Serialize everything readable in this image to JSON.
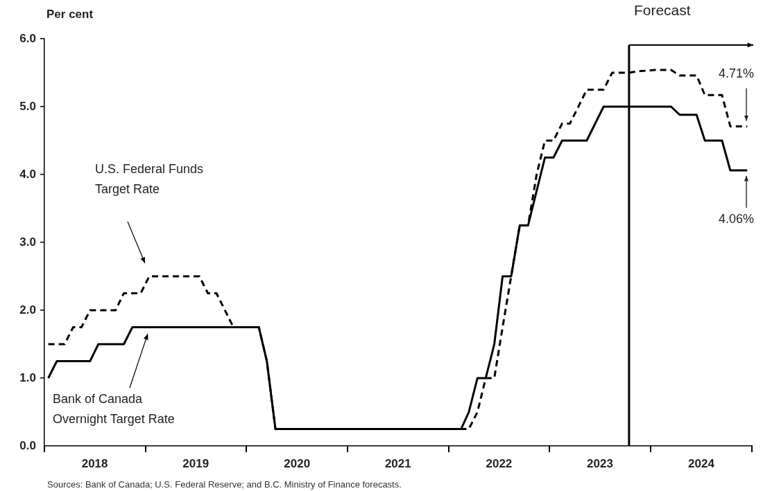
{
  "chart_data": {
    "type": "line",
    "ylabel": "Per cent",
    "xlim": [
      "2018-01-01",
      "2025-01-01"
    ],
    "xticks": [
      {
        "value": "2018-01-01",
        "label": null
      },
      {
        "value": "2018-07-02",
        "label": "2018"
      },
      {
        "value": "2019-01-01",
        "label": null
      },
      {
        "value": "2019-07-02",
        "label": "2019"
      },
      {
        "value": "2020-01-01",
        "label": null
      },
      {
        "value": "2020-07-02",
        "label": "2020"
      },
      {
        "value": "2021-01-01",
        "label": null
      },
      {
        "value": "2021-07-02",
        "label": "2021"
      },
      {
        "value": "2022-01-01",
        "label": null
      },
      {
        "value": "2022-07-02",
        "label": "2022"
      },
      {
        "value": "2023-01-01",
        "label": null
      },
      {
        "value": "2023-07-02",
        "label": "2023"
      },
      {
        "value": "2024-01-01",
        "label": null
      },
      {
        "value": "2024-07-02",
        "label": "2024"
      },
      {
        "value": "2025-01-01",
        "label": null
      }
    ],
    "ylim": [
      0,
      6
    ],
    "yticks": [
      {
        "value": 0,
        "label": "0.0"
      },
      {
        "value": 1,
        "label": "1.0"
      },
      {
        "value": 2,
        "label": "2.0"
      },
      {
        "value": 3,
        "label": "3.0"
      },
      {
        "value": 4,
        "label": "4.0"
      },
      {
        "value": 5,
        "label": "5.0"
      },
      {
        "value": 6,
        "label": "6.0"
      }
    ],
    "grid": false,
    "series": [
      {
        "color": "#000000",
        "line_style": "solid",
        "x": [
          "2018-01-15",
          "2018-02-15",
          "2018-06-15",
          "2018-07-15",
          "2018-10-15",
          "2018-11-15",
          "2020-02-15",
          "2020-03-15",
          "2020-04-15",
          "2022-02-15",
          "2022-03-15",
          "2022-04-15",
          "2022-05-15",
          "2022-06-15",
          "2022-07-15",
          "2022-08-15",
          "2022-09-15",
          "2022-10-15",
          "2022-12-15",
          "2023-01-15",
          "2023-02-15",
          "2023-05-15",
          "2023-07-15",
          "2024-03-15",
          "2024-04-15",
          "2024-06-15",
          "2024-07-15",
          "2024-09-15",
          "2024-10-15",
          "2024-12-15"
        ],
        "values": [
          1.0,
          1.25,
          1.25,
          1.5,
          1.5,
          1.75,
          1.75,
          1.25,
          0.25,
          0.25,
          0.5,
          1.0,
          1.0,
          1.5,
          2.5,
          2.5,
          3.25,
          3.25,
          4.25,
          4.25,
          4.5,
          4.5,
          5.0,
          5.0,
          4.88,
          4.88,
          4.5,
          4.5,
          4.06,
          4.06
        ]
      },
      {
        "color": "#000000",
        "line_style": "dashed",
        "x": [
          "2018-01-15",
          "2018-03-15",
          "2018-04-15",
          "2018-05-15",
          "2018-06-15",
          "2018-09-15",
          "2018-10-15",
          "2018-12-15",
          "2019-01-15",
          "2019-07-15",
          "2019-08-15",
          "2019-09-15",
          "2019-11-15",
          "2020-02-15",
          "2020-03-15",
          "2020-04-15",
          "2022-03-15",
          "2022-04-15",
          "2022-05-15",
          "2022-06-15",
          "2022-07-15",
          "2022-08-15",
          "2022-09-15",
          "2022-10-15",
          "2022-11-15",
          "2022-12-15",
          "2023-01-15",
          "2023-02-15",
          "2023-03-15",
          "2023-04-15",
          "2023-05-15",
          "2023-07-15",
          "2023-08-15",
          "2023-10-15",
          "2023-11-15",
          "2024-01-15",
          "2024-03-15",
          "2024-04-15",
          "2024-06-15",
          "2024-07-15",
          "2024-09-15",
          "2024-10-15",
          "2024-12-15"
        ],
        "values": [
          1.5,
          1.5,
          1.75,
          1.75,
          2.0,
          2.0,
          2.25,
          2.25,
          2.5,
          2.5,
          2.25,
          2.25,
          1.75,
          1.75,
          1.25,
          0.25,
          0.25,
          0.5,
          1.0,
          1.0,
          1.75,
          2.5,
          3.25,
          3.25,
          4.0,
          4.5,
          4.5,
          4.75,
          4.75,
          5.0,
          5.25,
          5.25,
          5.5,
          5.5,
          5.52,
          5.54,
          5.54,
          5.46,
          5.46,
          5.17,
          5.17,
          4.71,
          4.71
        ]
      }
    ],
    "ref_lines": [
      {
        "axis": "x",
        "value": "2023-10-15",
        "label": "Forecast"
      }
    ],
    "annotations": [
      "U.S. Federal Funds\nTarget Rate",
      "Bank of Canada\nOvernight Target Rate",
      {
        "text": "4.71%",
        "x": "2024-12-15",
        "y": 4.71
      },
      {
        "text": "4.06%",
        "x": "2024-12-15",
        "y": 4.06
      },
      "Sources: Bank of Canada; U.S. Federal Reserve; and B.C. Ministry of Finance forecasts."
    ]
  }
}
